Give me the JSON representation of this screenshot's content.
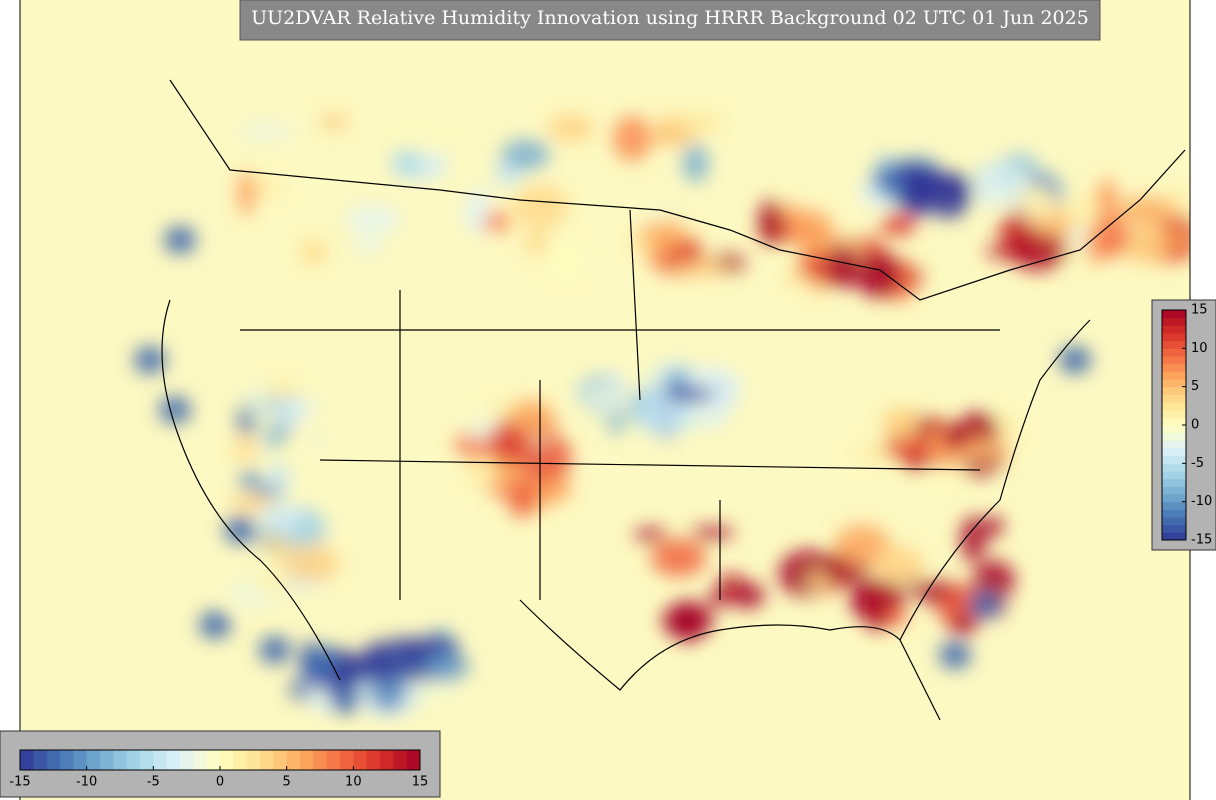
{
  "title": "UU2DVAR Relative Humidity Innovation using HRRR Background 02 UTC 01 Jun 2025",
  "colorbars": [
    {
      "orientation": "horizontal",
      "lim": [
        -15,
        15
      ],
      "ticks": [
        -15,
        -10,
        -5,
        0,
        5,
        10,
        15
      ]
    },
    {
      "orientation": "vertical",
      "lim": [
        -15,
        15
      ],
      "ticks": [
        -15,
        -10,
        -5,
        0,
        5,
        10,
        15
      ]
    }
  ]
}
